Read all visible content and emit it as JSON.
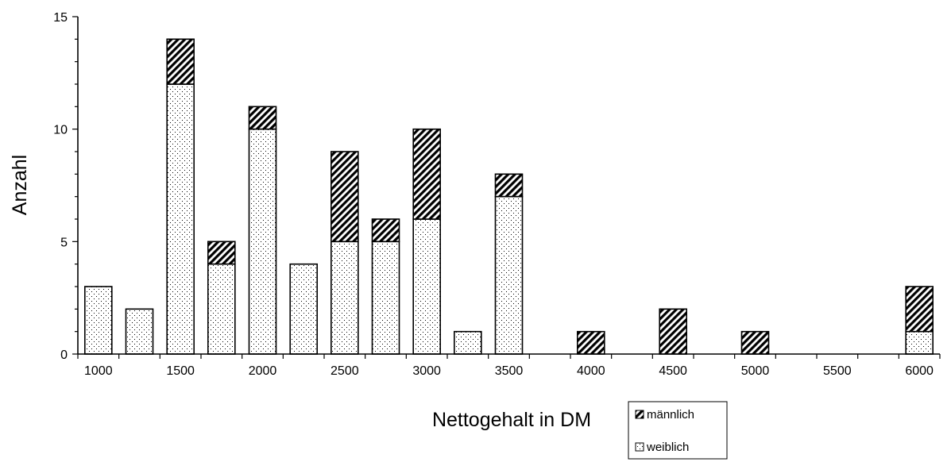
{
  "chart_data": {
    "type": "bar",
    "stacked": true,
    "xlabel": "Nettogehalt in DM",
    "ylabel": "Anzahl",
    "ylim": [
      0,
      15
    ],
    "yticks": [
      "0",
      "5",
      "10",
      "15"
    ],
    "xticks": [
      "1000",
      "1500",
      "2000",
      "2500",
      "3000",
      "3500",
      "4000",
      "4500",
      "5000",
      "5500",
      "6000"
    ],
    "categories": [
      "1000",
      "1250",
      "1500",
      "1750",
      "2000",
      "2250",
      "2500",
      "2750",
      "3000",
      "3250",
      "3500",
      "3750",
      "4000",
      "4250",
      "4500",
      "4750",
      "5000",
      "5250",
      "5500",
      "5750",
      "6000"
    ],
    "series": [
      {
        "name": "weiblich",
        "pattern": "dots",
        "values": [
          3,
          2,
          12,
          4,
          10,
          4,
          5,
          5,
          6,
          1,
          7,
          0,
          0,
          0,
          0,
          0,
          0,
          0,
          0,
          0,
          1
        ]
      },
      {
        "name": "männlich",
        "pattern": "hatch",
        "values": [
          0,
          0,
          2,
          1,
          1,
          0,
          4,
          1,
          4,
          0,
          1,
          0,
          1,
          0,
          2,
          0,
          1,
          0,
          0,
          0,
          2
        ]
      }
    ],
    "legend": {
      "placement": "bottom-right",
      "entries": [
        "männlich",
        "weiblich"
      ]
    },
    "grid": false
  }
}
